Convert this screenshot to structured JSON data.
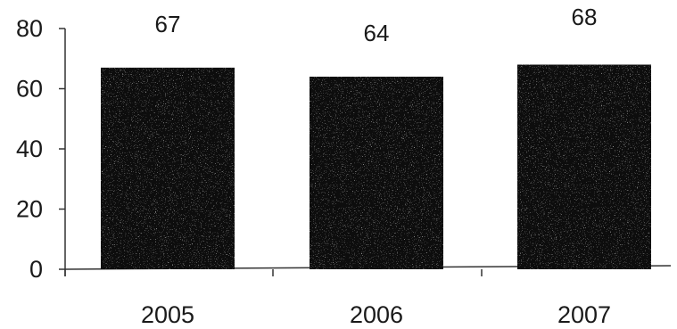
{
  "chart_data": {
    "type": "bar",
    "categories": [
      "2005",
      "2006",
      "2007"
    ],
    "values": [
      67,
      64,
      68
    ],
    "data_labels": [
      "67",
      "64",
      "68"
    ],
    "title": "",
    "xlabel": "",
    "ylabel": "",
    "ylim": [
      0,
      80
    ],
    "yticks": [
      "0",
      "20",
      "40",
      "60",
      "80"
    ],
    "grid": false,
    "legend": "none",
    "bar_color": "#111111"
  }
}
